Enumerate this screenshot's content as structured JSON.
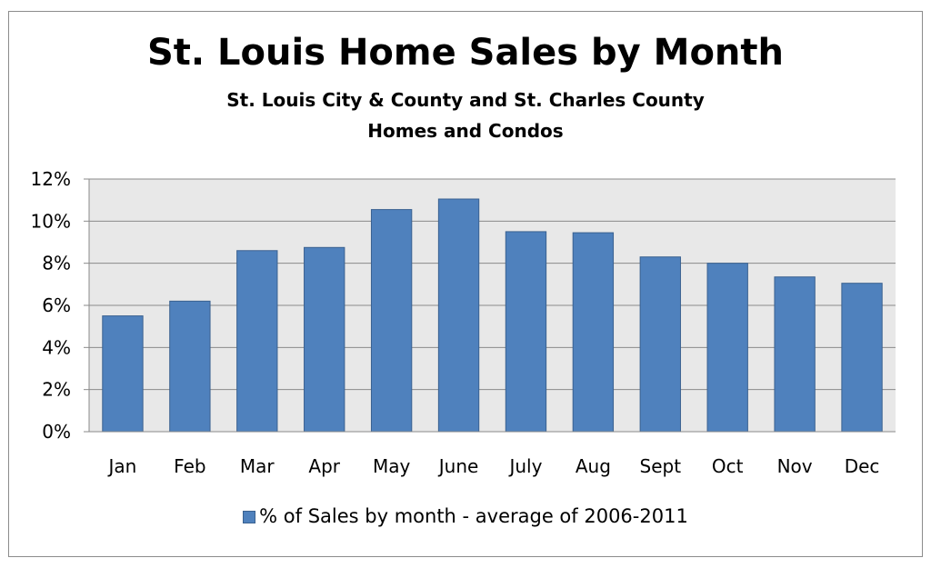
{
  "chart_data": {
    "type": "bar",
    "title": "St. Louis Home Sales by Month",
    "subtitle_lines": [
      "St. Louis City & County and St. Charles County",
      "Homes and Condos"
    ],
    "categories": [
      "Jan",
      "Feb",
      "Mar",
      "Apr",
      "May",
      "June",
      "July",
      "Aug",
      "Sept",
      "Oct",
      "Nov",
      "Dec"
    ],
    "series": [
      {
        "name": "% of Sales by month - average of 2006-2011",
        "values": [
          5.5,
          6.2,
          8.6,
          8.75,
          10.55,
          11.05,
          9.5,
          9.45,
          8.3,
          8.0,
          7.35,
          7.05
        ],
        "color": "#4f81bd",
        "border_color": "#3a6190"
      }
    ],
    "ylim": [
      0,
      12
    ],
    "yticks": [
      "0%",
      "2%",
      "4%",
      "6%",
      "8%",
      "10%",
      "12%"
    ],
    "grid": true,
    "plot_background": "#e8e8e8",
    "legend_position": "bottom"
  }
}
